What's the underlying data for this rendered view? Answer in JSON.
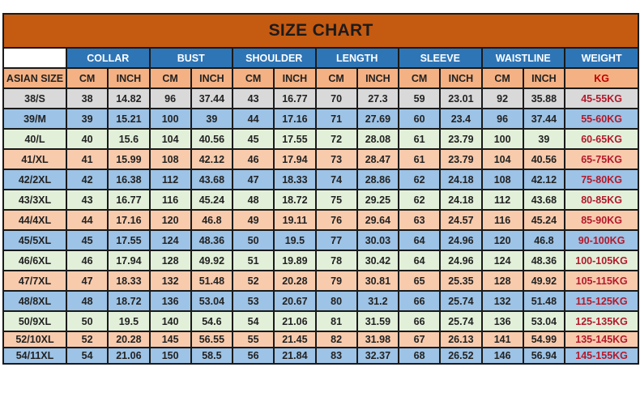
{
  "title": "SIZE CHART",
  "size_column_header": "ASIAN SIZE",
  "groups": [
    "COLLAR",
    "BUST",
    "SHOULDER",
    "LENGTH",
    "SLEEVE",
    "WAISTLINE"
  ],
  "weight_header": "WEIGHT",
  "unit_cm": "CM",
  "unit_inch": "INCH",
  "unit_kg": "KG",
  "colors": {
    "title": "#c55a11",
    "header": "#2e75b6",
    "subheader": "#f4b183",
    "gray": "#d9d9d9",
    "blue": "#9dc3e6",
    "green": "#e2f0d9",
    "orange": "#f8cbad",
    "weight_text": "#c00000"
  },
  "rows": [
    {
      "size": "38/S",
      "row_color": "gray",
      "values": [
        "38",
        "14.82",
        "96",
        "37.44",
        "43",
        "16.77",
        "70",
        "27.3",
        "59",
        "23.01",
        "92",
        "35.88"
      ],
      "weight": "45-55KG"
    },
    {
      "size": "39/M",
      "row_color": "blue",
      "values": [
        "39",
        "15.21",
        "100",
        "39",
        "44",
        "17.16",
        "71",
        "27.69",
        "60",
        "23.4",
        "96",
        "37.44"
      ],
      "weight": "55-60KG"
    },
    {
      "size": "40/L",
      "row_color": "green",
      "values": [
        "40",
        "15.6",
        "104",
        "40.56",
        "45",
        "17.55",
        "72",
        "28.08",
        "61",
        "23.79",
        "100",
        "39"
      ],
      "weight": "60-65KG"
    },
    {
      "size": "41/XL",
      "row_color": "orange",
      "values": [
        "41",
        "15.99",
        "108",
        "42.12",
        "46",
        "17.94",
        "73",
        "28.47",
        "61",
        "23.79",
        "104",
        "40.56"
      ],
      "weight": "65-75KG"
    },
    {
      "size": "42/2XL",
      "row_color": "blue",
      "values": [
        "42",
        "16.38",
        "112",
        "43.68",
        "47",
        "18.33",
        "74",
        "28.86",
        "62",
        "24.18",
        "108",
        "42.12"
      ],
      "weight": "75-80KG"
    },
    {
      "size": "43/3XL",
      "row_color": "green",
      "values": [
        "43",
        "16.77",
        "116",
        "45.24",
        "48",
        "18.72",
        "75",
        "29.25",
        "62",
        "24.18",
        "112",
        "43.68"
      ],
      "weight": "80-85KG"
    },
    {
      "size": "44/4XL",
      "row_color": "orange",
      "values": [
        "44",
        "17.16",
        "120",
        "46.8",
        "49",
        "19.11",
        "76",
        "29.64",
        "63",
        "24.57",
        "116",
        "45.24"
      ],
      "weight": "85-90KG"
    },
    {
      "size": "45/5XL",
      "row_color": "blue",
      "values": [
        "45",
        "17.55",
        "124",
        "48.36",
        "50",
        "19.5",
        "77",
        "30.03",
        "64",
        "24.96",
        "120",
        "46.8"
      ],
      "weight": "90-100KG"
    },
    {
      "size": "46/6XL",
      "row_color": "green",
      "values": [
        "46",
        "17.94",
        "128",
        "49.92",
        "51",
        "19.89",
        "78",
        "30.42",
        "64",
        "24.96",
        "124",
        "48.36"
      ],
      "weight": "100-105KG"
    },
    {
      "size": "47/7XL",
      "row_color": "orange",
      "values": [
        "47",
        "18.33",
        "132",
        "51.48",
        "52",
        "20.28",
        "79",
        "30.81",
        "65",
        "25.35",
        "128",
        "49.92"
      ],
      "weight": "105-115KG"
    },
    {
      "size": "48/8XL",
      "row_color": "blue",
      "values": [
        "48",
        "18.72",
        "136",
        "53.04",
        "53",
        "20.67",
        "80",
        "31.2",
        "66",
        "25.74",
        "132",
        "51.48"
      ],
      "weight": "115-125KG"
    },
    {
      "size": "50/9XL",
      "row_color": "green",
      "values": [
        "50",
        "19.5",
        "140",
        "54.6",
        "54",
        "21.06",
        "81",
        "31.59",
        "66",
        "25.74",
        "136",
        "53.04"
      ],
      "weight": "125-135KG"
    },
    {
      "size": "52/10XL",
      "row_color": "orange",
      "values": [
        "52",
        "20.28",
        "145",
        "56.55",
        "55",
        "21.45",
        "82",
        "31.98",
        "67",
        "26.13",
        "141",
        "54.99"
      ],
      "weight": "135-145KG"
    },
    {
      "size": "54/11XL",
      "row_color": "blue",
      "values": [
        "54",
        "21.06",
        "150",
        "58.5",
        "56",
        "21.84",
        "83",
        "32.37",
        "68",
        "26.52",
        "146",
        "56.94"
      ],
      "weight": "145-155KG"
    }
  ]
}
